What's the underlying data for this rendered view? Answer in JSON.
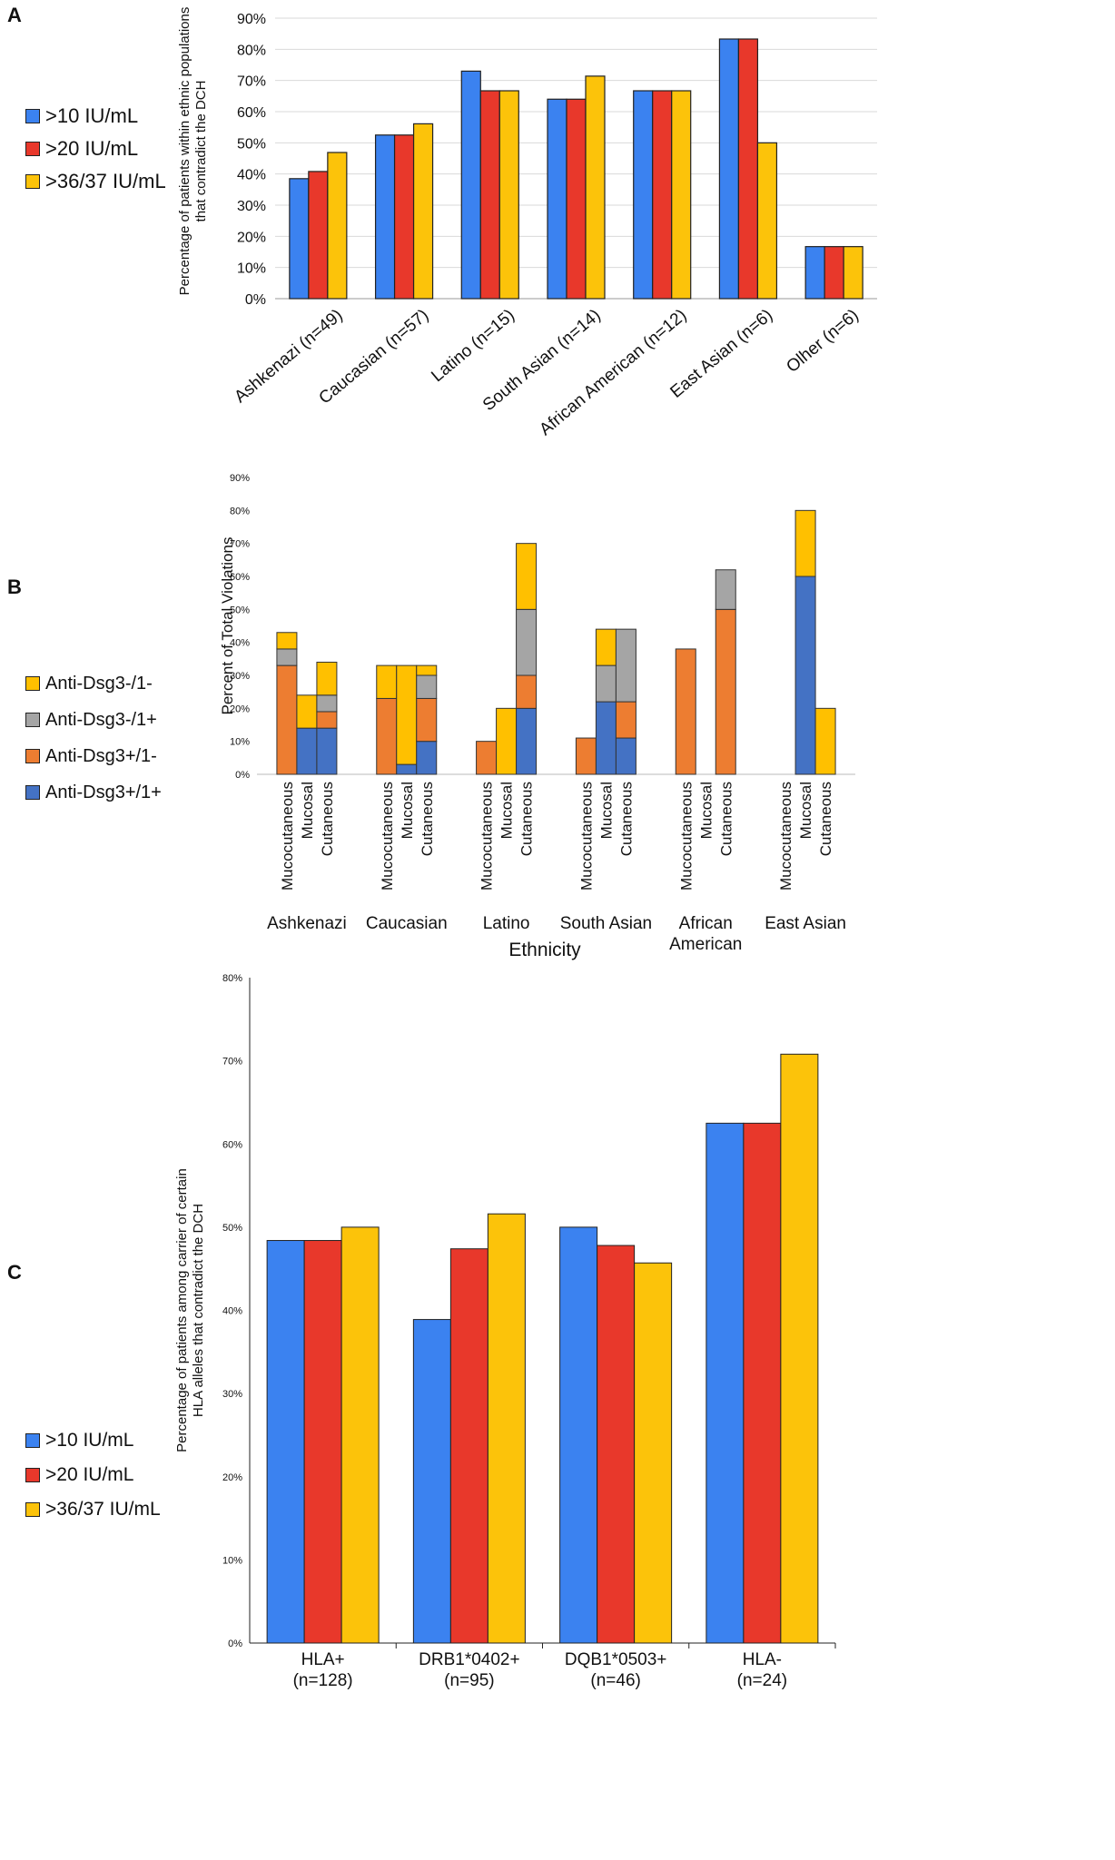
{
  "chart_data": [
    {
      "panel": "A",
      "type": "bar",
      "ylabel": "Percentage of patients within ethnic populations that contradict the DCH",
      "xlabel": "",
      "ylim": [
        0,
        90
      ],
      "yticks": [
        "0%",
        "10%",
        "20%",
        "30%",
        "40%",
        "50%",
        "60%",
        "70%",
        "80%",
        "90%"
      ],
      "categories": [
        "Ashkenazi (n=49)",
        "Caucasian (n=57)",
        "Latino (n=15)",
        "South Asian (n=14)",
        "African American (n=12)",
        "East Asian (n=6)",
        "Olher (n=6)"
      ],
      "series": [
        {
          "name": ">10 IU/mL",
          "color": "#3b82f0",
          "values": [
            38.5,
            52.5,
            73,
            64,
            66.7,
            83.3,
            16.7
          ]
        },
        {
          "name": ">20 IU/mL",
          "color": "#e8382b",
          "values": [
            40.8,
            52.5,
            66.7,
            64,
            66.7,
            83.3,
            16.7
          ]
        },
        {
          "name": ">36/37 IU/mL",
          "color": "#fcc30a",
          "values": [
            46.9,
            56.1,
            66.7,
            71.4,
            66.7,
            50,
            16.7
          ]
        }
      ],
      "legend_position": "left"
    },
    {
      "panel": "B",
      "type": "stacked-bar",
      "ylabel": "Percent of Total Violations",
      "xlabel": "Ethnicity",
      "ylim": [
        0,
        90
      ],
      "yticks": [
        "0%",
        "10%",
        "20%",
        "30%",
        "40%",
        "50%",
        "60%",
        "70%",
        "80%",
        "90%"
      ],
      "subcategories": [
        "Mucocutaneous",
        "Mucosal",
        "Cutaneous"
      ],
      "groups": [
        {
          "label": "Ashkenazi",
          "label2": ""
        },
        {
          "label": "Caucasian",
          "label2": ""
        },
        {
          "label": "Latino",
          "label2": ""
        },
        {
          "label": "South Asian",
          "label2": ""
        },
        {
          "label": "African",
          "label2": "American"
        },
        {
          "label": "East Asian",
          "label2": ""
        }
      ],
      "series": [
        {
          "name": "Anti-Dsg3+/1+",
          "color": "#4472c4",
          "values": [
            [
              0,
              14,
              14
            ],
            [
              0,
              3,
              10
            ],
            [
              0,
              0,
              20
            ],
            [
              0,
              22,
              11
            ],
            [
              0,
              0,
              0
            ],
            [
              0,
              60,
              0
            ]
          ]
        },
        {
          "name": "Anti-Dsg3+/1-",
          "color": "#ed7d31",
          "values": [
            [
              33,
              0,
              5
            ],
            [
              23,
              0,
              13
            ],
            [
              10,
              0,
              10
            ],
            [
              11,
              0,
              11
            ],
            [
              38,
              0,
              50
            ],
            [
              0,
              0,
              0
            ]
          ]
        },
        {
          "name": "Anti-Dsg3-/1+",
          "color": "#a5a5a5",
          "values": [
            [
              5,
              0,
              5
            ],
            [
              0,
              0,
              7
            ],
            [
              0,
              0,
              20
            ],
            [
              0,
              11,
              22
            ],
            [
              0,
              0,
              12
            ],
            [
              0,
              0,
              0
            ]
          ]
        },
        {
          "name": "Anti-Dsg3-/1-",
          "color": "#ffc000",
          "values": [
            [
              5,
              10,
              10
            ],
            [
              10,
              30,
              3
            ],
            [
              0,
              20,
              20
            ],
            [
              0,
              11,
              0
            ],
            [
              0,
              0,
              0
            ],
            [
              0,
              20,
              20
            ]
          ]
        }
      ],
      "legend_order": [
        "Anti-Dsg3-/1-",
        "Anti-Dsg3-/1+",
        "Anti-Dsg3+/1-",
        "Anti-Dsg3+/1+"
      ],
      "legend_position": "left"
    },
    {
      "panel": "C",
      "type": "bar",
      "ylabel": "Percentage of patients among carrier of certain HLA alleles that contradict the DCH",
      "xlabel": "",
      "ylim": [
        0,
        80
      ],
      "yticks": [
        "0%",
        "10%",
        "20%",
        "30%",
        "40%",
        "50%",
        "60%",
        "70%",
        "80%"
      ],
      "categories": [
        {
          "label": "HLA+",
          "n": "(n=128)"
        },
        {
          "label": "DRB1*0402+",
          "n": "(n=95)"
        },
        {
          "label": "DQB1*0503+",
          "n": "(n=46)"
        },
        {
          "label": "HLA-",
          "n": "(n=24)"
        }
      ],
      "series": [
        {
          "name": ">10 IU/mL",
          "color": "#3b82f0",
          "values": [
            48.4,
            38.9,
            50,
            62.5
          ]
        },
        {
          "name": ">20 IU/mL",
          "color": "#e8382b",
          "values": [
            48.4,
            47.4,
            47.8,
            62.5
          ]
        },
        {
          "name": ">36/37 IU/mL",
          "color": "#fcc30a",
          "values": [
            50,
            51.6,
            45.7,
            70.8
          ]
        }
      ],
      "legend_position": "left"
    }
  ]
}
